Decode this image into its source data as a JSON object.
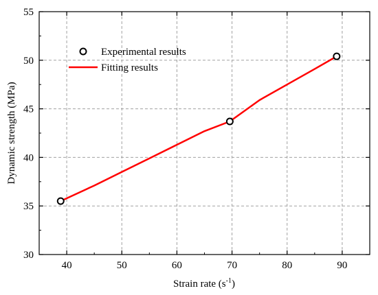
{
  "chart_data": {
    "type": "scatter",
    "xlabel": "Strain rate (s",
    "xlabel_sup": "-1",
    "xlabel_end": ")",
    "ylabel": "Dynamic strength (MPa)",
    "xlim": [
      35,
      95
    ],
    "ylim": [
      30,
      55
    ],
    "x_ticks": [
      40,
      50,
      60,
      70,
      80,
      90
    ],
    "y_ticks": [
      30,
      35,
      40,
      45,
      50,
      55
    ],
    "grid": true,
    "legend_position": "top-left",
    "series": [
      {
        "name": "Experimental results",
        "kind": "markers",
        "marker": "open-circle",
        "x": [
          38.9,
          69.6,
          89.0
        ],
        "y": [
          35.5,
          43.7,
          50.4
        ]
      },
      {
        "name": "Fitting results",
        "kind": "line",
        "color": "#ff0000",
        "x": [
          38.9,
          45,
          50,
          55,
          60,
          65,
          69.6,
          75,
          80,
          85,
          89.0
        ],
        "y": [
          35.5,
          37.1,
          38.5,
          39.9,
          41.3,
          42.7,
          43.7,
          45.9,
          47.5,
          49.1,
          50.4
        ]
      }
    ]
  }
}
